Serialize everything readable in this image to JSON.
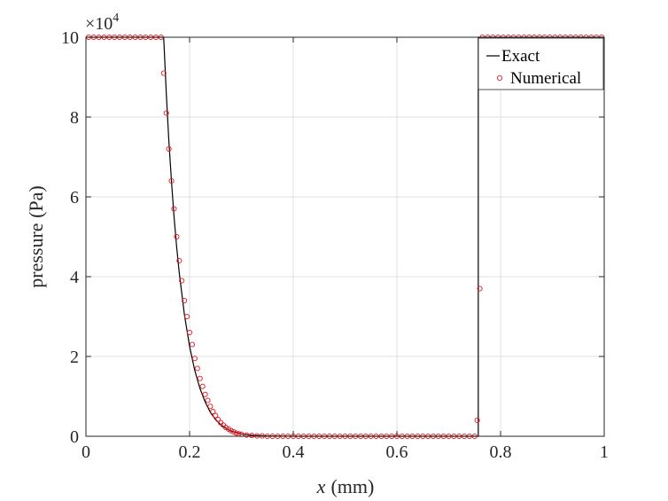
{
  "chart_data": {
    "type": "line",
    "xlabel_var": "x",
    "xlabel_unit": "(mm)",
    "ylabel": "pressure (Pa)",
    "y_multiplier_base": "×10",
    "y_multiplier_exp": "4",
    "xlim": [
      0,
      1
    ],
    "ylim": [
      0,
      10
    ],
    "x_ticks": [
      0,
      0.2,
      0.4,
      0.6,
      0.8,
      1
    ],
    "x_tick_labels": [
      "0",
      "0.2",
      "0.4",
      "0.6",
      "0.8",
      "1"
    ],
    "y_ticks": [
      0,
      2,
      4,
      6,
      8,
      10
    ],
    "y_tick_labels": [
      "0",
      "2",
      "4",
      "6",
      "8",
      "10"
    ],
    "grid": true,
    "legend_position": "top-right",
    "series": [
      {
        "name": "Exact",
        "style": "line",
        "color": "#000000",
        "x": [
          0,
          0.15,
          0.155,
          0.16,
          0.165,
          0.17,
          0.175,
          0.18,
          0.19,
          0.2,
          0.21,
          0.22,
          0.23,
          0.24,
          0.25,
          0.26,
          0.27,
          0.28,
          0.3,
          0.32,
          0.35,
          0.4,
          0.5,
          0.6,
          0.7,
          0.757,
          0.757,
          0.8,
          0.9,
          1
        ],
        "y": [
          10,
          10,
          8.6,
          7.4,
          6.4,
          5.5,
          4.75,
          4.1,
          3.05,
          2.25,
          1.65,
          1.2,
          0.86,
          0.6,
          0.42,
          0.29,
          0.2,
          0.13,
          0.06,
          0.025,
          0.01,
          0,
          0,
          0,
          0,
          0,
          10,
          10,
          10,
          10
        ]
      },
      {
        "name": "Numerical",
        "style": "markers",
        "color": "#e8141b",
        "x": [
          0.005,
          0.015,
          0.025,
          0.035,
          0.045,
          0.055,
          0.065,
          0.075,
          0.085,
          0.095,
          0.105,
          0.115,
          0.125,
          0.135,
          0.145,
          0.15,
          0.155,
          0.16,
          0.165,
          0.17,
          0.175,
          0.18,
          0.185,
          0.19,
          0.195,
          0.2,
          0.205,
          0.21,
          0.215,
          0.22,
          0.225,
          0.23,
          0.235,
          0.24,
          0.245,
          0.25,
          0.255,
          0.26,
          0.265,
          0.27,
          0.275,
          0.28,
          0.285,
          0.29,
          0.295,
          0.3,
          0.31,
          0.32,
          0.33,
          0.34,
          0.35,
          0.36,
          0.37,
          0.38,
          0.39,
          0.4,
          0.41,
          0.42,
          0.43,
          0.44,
          0.45,
          0.46,
          0.47,
          0.48,
          0.49,
          0.5,
          0.51,
          0.52,
          0.53,
          0.54,
          0.55,
          0.56,
          0.57,
          0.58,
          0.59,
          0.6,
          0.61,
          0.62,
          0.63,
          0.64,
          0.65,
          0.66,
          0.67,
          0.68,
          0.69,
          0.7,
          0.71,
          0.72,
          0.73,
          0.74,
          0.75,
          0.755,
          0.76,
          0.765,
          0.775,
          0.785,
          0.795,
          0.805,
          0.815,
          0.825,
          0.835,
          0.845,
          0.855,
          0.865,
          0.875,
          0.885,
          0.895,
          0.905,
          0.915,
          0.925,
          0.935,
          0.945,
          0.955,
          0.965,
          0.975,
          0.985,
          0.995
        ],
        "y": [
          10,
          10,
          10,
          10,
          10,
          10,
          10,
          10,
          10,
          10,
          10,
          10,
          10,
          10,
          10,
          9.1,
          8.1,
          7.2,
          6.4,
          5.7,
          5.0,
          4.4,
          3.9,
          3.4,
          3.0,
          2.6,
          2.3,
          1.95,
          1.7,
          1.45,
          1.25,
          1.05,
          0.9,
          0.75,
          0.62,
          0.52,
          0.42,
          0.34,
          0.28,
          0.22,
          0.18,
          0.14,
          0.11,
          0.08,
          0.06,
          0.05,
          0.03,
          0.02,
          0.01,
          0.01,
          0,
          0,
          0,
          0,
          0,
          0,
          0,
          0,
          0,
          0,
          0,
          0,
          0,
          0,
          0,
          0,
          0,
          0,
          0,
          0,
          0,
          0,
          0,
          0,
          0,
          0,
          0,
          0,
          0,
          0,
          0,
          0,
          0,
          0,
          0,
          0,
          0,
          0,
          0,
          0,
          0,
          0.4,
          3.7,
          10,
          10,
          10,
          10,
          10,
          10,
          10,
          10,
          10,
          10,
          10,
          10,
          10,
          10,
          10,
          10,
          10,
          10,
          10,
          10,
          10,
          10,
          10,
          10
        ]
      }
    ]
  }
}
